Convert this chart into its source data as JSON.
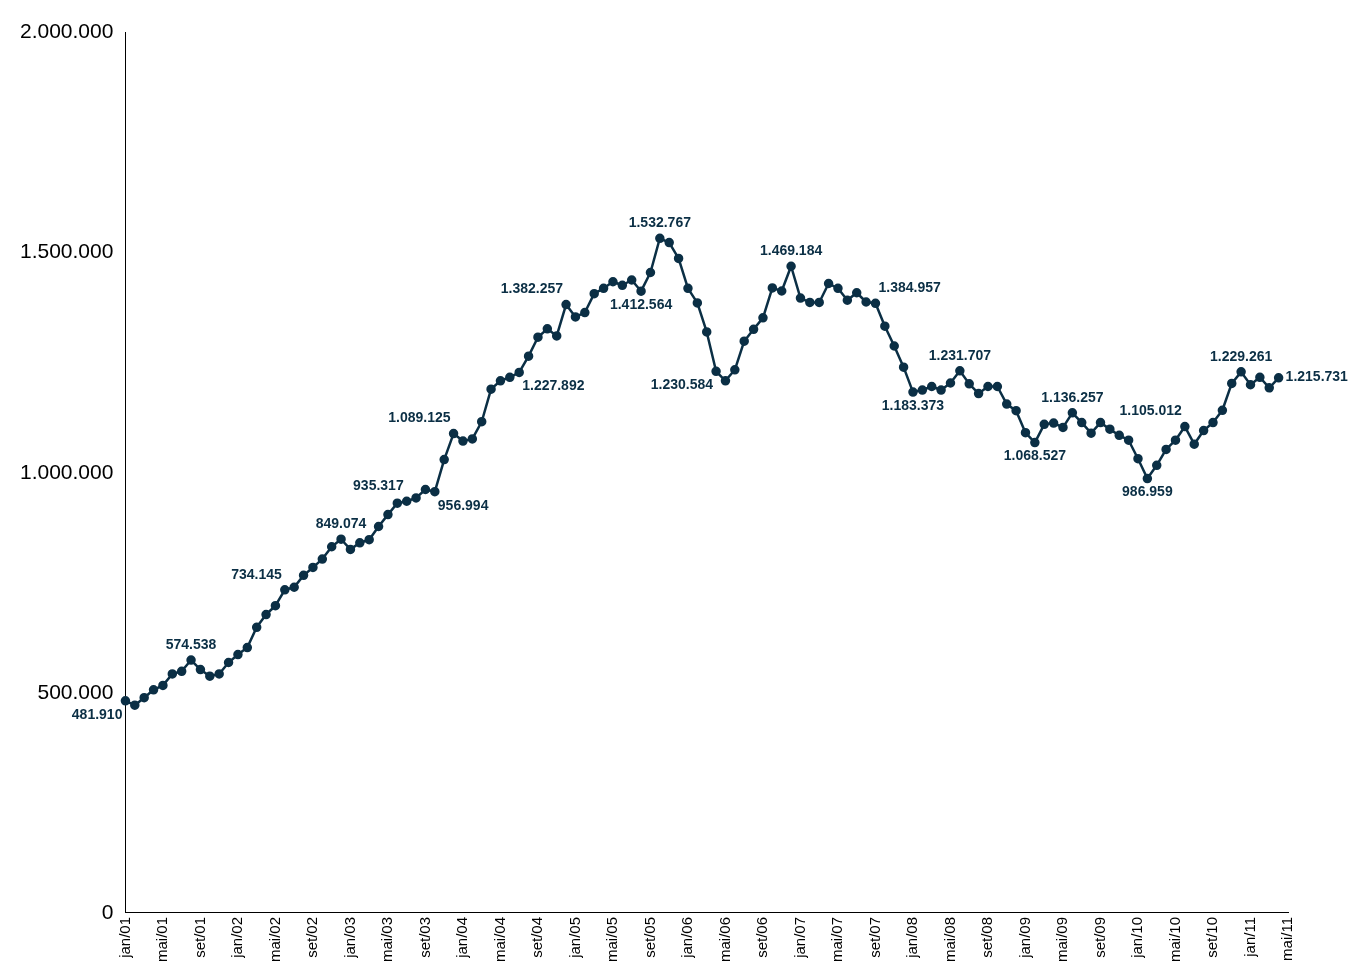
{
  "chart_data": {
    "type": "line",
    "color": "#0b2f45",
    "marker": "circle",
    "line_style": "solid",
    "categories": [
      "jan/01",
      null,
      null,
      null,
      "mai/01",
      null,
      null,
      null,
      "set/01",
      null,
      null,
      null,
      "jan/02",
      null,
      null,
      null,
      "mai/02",
      null,
      null,
      null,
      "set/02",
      null,
      null,
      null,
      "jan/03",
      null,
      null,
      null,
      "mai/03",
      null,
      null,
      null,
      "set/03",
      null,
      null,
      null,
      "jan/04",
      null,
      null,
      null,
      "mai/04",
      null,
      null,
      null,
      "set/04",
      null,
      null,
      null,
      "jan/05",
      null,
      null,
      null,
      "mai/05",
      null,
      null,
      null,
      "set/05",
      null,
      null,
      null,
      "jan/06",
      null,
      null,
      null,
      "mai/06",
      null,
      null,
      null,
      "set/06",
      null,
      null,
      null,
      "jan/07",
      null,
      null,
      null,
      "mai/07",
      null,
      null,
      null,
      "set/07",
      null,
      null,
      null,
      "jan/08",
      null,
      null,
      null,
      "mai/08",
      null,
      null,
      null,
      "set/08",
      null,
      null,
      null,
      "jan/09",
      null,
      null,
      null,
      "mai/09",
      null,
      null,
      null,
      "set/09",
      null,
      null,
      null,
      "jan/10",
      null,
      null,
      null,
      "mai/10",
      null,
      null,
      null,
      "set/10",
      null,
      null,
      null,
      "jan/11",
      null,
      null,
      null,
      "mai/11"
    ],
    "values": [
      481910,
      472000,
      489000,
      507000,
      517000,
      543000,
      549000,
      574538,
      553000,
      538000,
      543000,
      569000,
      587000,
      603000,
      649000,
      678000,
      698000,
      734145,
      740000,
      767000,
      785000,
      804000,
      832000,
      849074,
      826000,
      841000,
      848000,
      878000,
      905000,
      931000,
      935317,
      943000,
      962000,
      956994,
      1030000,
      1089125,
      1072000,
      1077000,
      1116000,
      1190000,
      1209000,
      1217000,
      1227892,
      1265000,
      1308000,
      1327000,
      1311000,
      1382257,
      1354000,
      1364000,
      1407000,
      1419000,
      1434000,
      1426000,
      1438000,
      1412564,
      1455000,
      1532767,
      1523000,
      1487000,
      1419000,
      1386000,
      1320000,
      1230584,
      1209000,
      1234000,
      1299000,
      1326000,
      1352000,
      1420000,
      1413000,
      1469184,
      1397000,
      1387000,
      1387000,
      1430000,
      1419000,
      1392000,
      1409000,
      1388000,
      1384957,
      1333000,
      1288000,
      1240000,
      1183373,
      1188000,
      1196000,
      1188000,
      1204000,
      1231707,
      1202000,
      1180000,
      1196000,
      1196000,
      1156000,
      1141000,
      1091000,
      1068527,
      1110000,
      1113000,
      1103000,
      1136257,
      1114000,
      1090000,
      1114000,
      1099000,
      1085000,
      1074000,
      1032000,
      986959,
      1017000,
      1053000,
      1074000,
      1105012,
      1065000,
      1096000,
      1114000,
      1142000,
      1203000,
      1229261,
      1200000,
      1217000,
      1193000,
      1215731,
      null
    ],
    "value_labels": [
      "481.910",
      null,
      null,
      null,
      null,
      null,
      null,
      "574.538",
      null,
      null,
      null,
      null,
      null,
      null,
      null,
      null,
      null,
      "734.145",
      null,
      null,
      null,
      null,
      null,
      "849.074",
      null,
      null,
      null,
      null,
      null,
      null,
      "935.317",
      null,
      null,
      "956.994",
      null,
      "1.089.125",
      null,
      null,
      null,
      null,
      null,
      null,
      "1.227.892",
      null,
      null,
      null,
      null,
      "1.382.257",
      null,
      null,
      null,
      null,
      null,
      null,
      null,
      "1.412.564",
      null,
      "1.532.767",
      null,
      null,
      null,
      null,
      null,
      "1.230.584",
      null,
      null,
      null,
      null,
      null,
      null,
      null,
      "1.469.184",
      null,
      null,
      null,
      null,
      null,
      null,
      null,
      null,
      "1.384.957",
      null,
      null,
      null,
      "1.183.373",
      null,
      null,
      null,
      null,
      "1.231.707",
      null,
      null,
      null,
      null,
      null,
      null,
      null,
      "1.068.527",
      null,
      null,
      null,
      "1.136.257",
      null,
      null,
      null,
      null,
      null,
      null,
      null,
      "986.959",
      null,
      null,
      null,
      "1.105.012",
      null,
      null,
      null,
      null,
      null,
      "1.229.261",
      null,
      null,
      null,
      "1.215.731",
      null
    ],
    "ylim": [
      0,
      2000000
    ],
    "yticks": [
      {
        "value": 0,
        "label": "0"
      },
      {
        "value": 500000,
        "label": "500.000"
      },
      {
        "value": 1000000,
        "label": "1.000.000"
      },
      {
        "value": 1500000,
        "label": "1.500.000"
      },
      {
        "value": 2000000,
        "label": "2.000.000"
      }
    ]
  }
}
